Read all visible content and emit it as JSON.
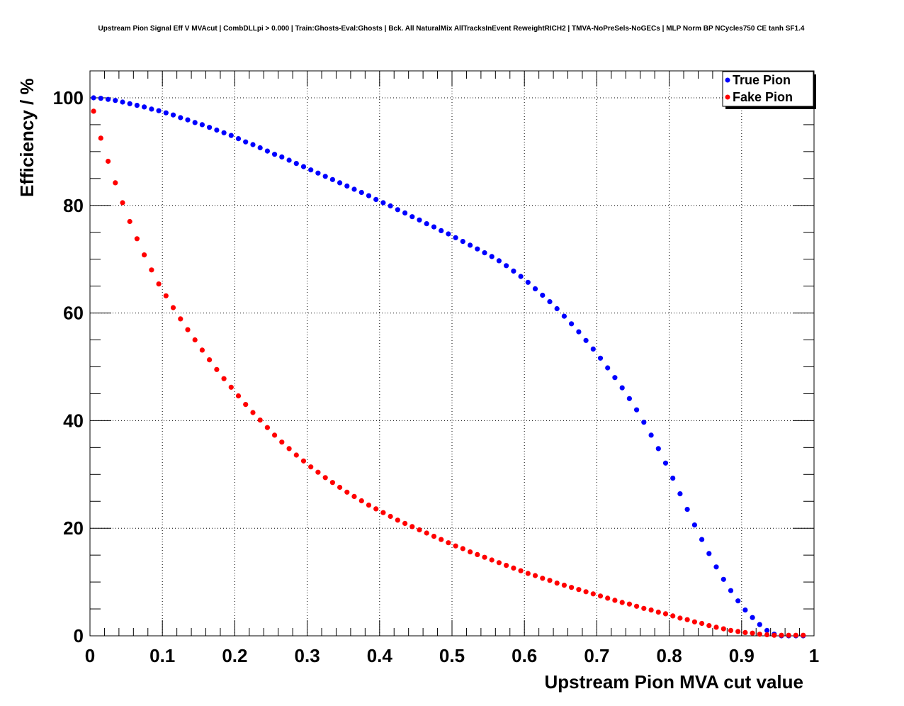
{
  "chart_data": {
    "type": "scatter",
    "title": "Upstream Pion Signal Eff V MVAcut | CombDLLpi > 0.000 | Train:Ghosts-Eval:Ghosts | Bck. All NaturalMix AllTracksInEvent ReweightRICH2 | TMVA-NoPreSels-NoGECs | MLP Norm BP NCycles750 CE tanh SF1.4",
    "xlabel": "Upstream Pion MVA cut value",
    "ylabel": "Efficiency / %",
    "xlim": [
      0,
      1
    ],
    "ylim": [
      0,
      105
    ],
    "x_ticks": [
      "0",
      "0.1",
      "0.2",
      "0.3",
      "0.4",
      "0.5",
      "0.6",
      "0.7",
      "0.8",
      "0.9",
      "1"
    ],
    "y_ticks": [
      "0",
      "20",
      "40",
      "60",
      "80",
      "100"
    ],
    "grid": true,
    "legend_position": "top-right",
    "series": [
      {
        "name": "True Pion",
        "color": "#0000ff",
        "x": [
          0.005,
          0.015,
          0.025,
          0.035,
          0.045,
          0.055,
          0.065,
          0.075,
          0.085,
          0.095,
          0.105,
          0.115,
          0.125,
          0.135,
          0.145,
          0.155,
          0.165,
          0.175,
          0.185,
          0.195,
          0.205,
          0.215,
          0.225,
          0.235,
          0.245,
          0.255,
          0.265,
          0.275,
          0.285,
          0.295,
          0.305,
          0.315,
          0.325,
          0.335,
          0.345,
          0.355,
          0.365,
          0.375,
          0.385,
          0.395,
          0.405,
          0.415,
          0.425,
          0.435,
          0.445,
          0.455,
          0.465,
          0.475,
          0.485,
          0.495,
          0.505,
          0.515,
          0.525,
          0.535,
          0.545,
          0.555,
          0.565,
          0.575,
          0.585,
          0.595,
          0.605,
          0.615,
          0.625,
          0.635,
          0.645,
          0.655,
          0.665,
          0.675,
          0.685,
          0.695,
          0.705,
          0.715,
          0.725,
          0.735,
          0.745,
          0.755,
          0.765,
          0.775,
          0.785,
          0.795,
          0.805,
          0.815,
          0.825,
          0.835,
          0.845,
          0.855,
          0.865,
          0.875,
          0.885,
          0.895,
          0.905,
          0.915,
          0.925,
          0.935,
          0.945,
          0.955,
          0.965,
          0.975,
          0.985
        ],
        "y": [
          100.0,
          99.9,
          99.7,
          99.5,
          99.2,
          98.9,
          98.6,
          98.3,
          97.9,
          97.6,
          97.2,
          96.8,
          96.3,
          95.9,
          95.4,
          95.0,
          94.5,
          94.0,
          93.5,
          93.0,
          92.4,
          91.8,
          91.3,
          90.7,
          90.1,
          89.5,
          89.0,
          88.4,
          87.8,
          87.2,
          86.6,
          86.0,
          85.4,
          84.8,
          84.2,
          83.6,
          83.0,
          82.4,
          81.8,
          81.1,
          80.5,
          79.9,
          79.2,
          78.6,
          77.9,
          77.3,
          76.6,
          76.0,
          75.3,
          74.7,
          74.0,
          73.3,
          72.6,
          71.9,
          71.2,
          70.5,
          69.7,
          68.8,
          67.8,
          66.8,
          65.7,
          64.5,
          63.3,
          62.1,
          60.8,
          59.4,
          58.0,
          56.5,
          54.9,
          53.3,
          51.6,
          49.8,
          48.0,
          46.1,
          44.1,
          42.0,
          39.7,
          37.3,
          34.8,
          32.1,
          29.3,
          26.4,
          23.5,
          20.6,
          17.9,
          15.3,
          12.8,
          10.5,
          8.4,
          6.5,
          4.8,
          3.4,
          2.1,
          1.0,
          0.3,
          0.0,
          0.0,
          0.0,
          0.0
        ]
      },
      {
        "name": "Fake Pion",
        "color": "#ff0000",
        "x": [
          0.005,
          0.015,
          0.025,
          0.035,
          0.045,
          0.055,
          0.065,
          0.075,
          0.085,
          0.095,
          0.105,
          0.115,
          0.125,
          0.135,
          0.145,
          0.155,
          0.165,
          0.175,
          0.185,
          0.195,
          0.205,
          0.215,
          0.225,
          0.235,
          0.245,
          0.255,
          0.265,
          0.275,
          0.285,
          0.295,
          0.305,
          0.315,
          0.325,
          0.335,
          0.345,
          0.355,
          0.365,
          0.375,
          0.385,
          0.395,
          0.405,
          0.415,
          0.425,
          0.435,
          0.445,
          0.455,
          0.465,
          0.475,
          0.485,
          0.495,
          0.505,
          0.515,
          0.525,
          0.535,
          0.545,
          0.555,
          0.565,
          0.575,
          0.585,
          0.595,
          0.605,
          0.615,
          0.625,
          0.635,
          0.645,
          0.655,
          0.665,
          0.675,
          0.685,
          0.695,
          0.705,
          0.715,
          0.725,
          0.735,
          0.745,
          0.755,
          0.765,
          0.775,
          0.785,
          0.795,
          0.805,
          0.815,
          0.825,
          0.835,
          0.845,
          0.855,
          0.865,
          0.875,
          0.885,
          0.895,
          0.905,
          0.915,
          0.925,
          0.935,
          0.945,
          0.955,
          0.965,
          0.975,
          0.985
        ],
        "y": [
          97.5,
          92.5,
          88.2,
          84.2,
          80.5,
          77.0,
          73.8,
          70.8,
          68.0,
          65.4,
          63.2,
          61.0,
          58.9,
          56.9,
          55.0,
          53.1,
          51.3,
          49.5,
          47.8,
          46.2,
          44.6,
          43.0,
          41.5,
          40.1,
          38.7,
          37.3,
          36.0,
          34.8,
          33.6,
          32.5,
          31.4,
          30.4,
          29.4,
          28.5,
          27.6,
          26.7,
          25.9,
          25.1,
          24.3,
          23.6,
          22.9,
          22.2,
          21.5,
          20.9,
          20.3,
          19.7,
          19.1,
          18.5,
          17.9,
          17.3,
          16.7,
          16.2,
          15.6,
          15.1,
          14.6,
          14.1,
          13.6,
          13.1,
          12.6,
          12.1,
          11.6,
          11.2,
          10.7,
          10.3,
          9.8,
          9.4,
          9.0,
          8.6,
          8.2,
          7.8,
          7.4,
          7.0,
          6.6,
          6.2,
          5.9,
          5.5,
          5.1,
          4.8,
          4.4,
          4.1,
          3.7,
          3.3,
          3.0,
          2.6,
          2.3,
          1.9,
          1.6,
          1.3,
          1.0,
          0.8,
          0.6,
          0.5,
          0.3,
          0.2,
          0.1,
          0.1,
          0.1,
          0.1,
          0.1
        ]
      }
    ]
  }
}
